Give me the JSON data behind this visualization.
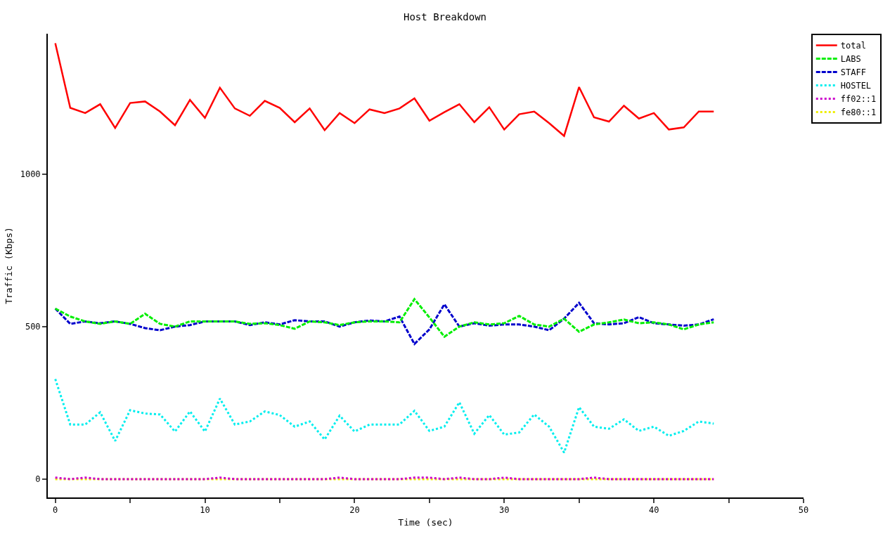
{
  "chart_data": {
    "type": "line",
    "title": "Host Breakdown",
    "xlabel": "Time (sec)",
    "ylabel": "Traffic (Kbps)",
    "x": [
      0,
      1,
      2,
      3,
      4,
      5,
      6,
      7,
      8,
      9,
      10,
      11,
      12,
      13,
      14,
      15,
      16,
      17,
      18,
      19,
      20,
      21,
      22,
      23,
      24,
      25,
      26,
      27,
      28,
      29,
      30,
      31,
      32,
      33,
      34,
      35,
      36,
      37,
      38,
      39,
      40,
      41,
      42,
      43,
      44
    ],
    "series": [
      {
        "name": "total",
        "color": "#ff0000",
        "line_style": "solid",
        "values": [
          1429,
          1217,
          1200,
          1229,
          1151,
          1233,
          1238,
          1205,
          1160,
          1243,
          1184,
          1283,
          1215,
          1191,
          1240,
          1217,
          1170,
          1215,
          1144,
          1200,
          1167,
          1212,
          1200,
          1215,
          1248,
          1175,
          1203,
          1229,
          1170,
          1219,
          1146,
          1196,
          1205,
          1167,
          1125,
          1285,
          1186,
          1172,
          1224,
          1182,
          1200,
          1146,
          1153,
          1205,
          1205
        ]
      },
      {
        "name": "LABS",
        "color": "#00ee00",
        "line_style": "dashed",
        "values": [
          559,
          533,
          517,
          509,
          517,
          509,
          542,
          509,
          500,
          517,
          517,
          517,
          517,
          509,
          511,
          505,
          493,
          517,
          514,
          505,
          514,
          517,
          517,
          514,
          590,
          530,
          467,
          500,
          514,
          507,
          511,
          535,
          507,
          500,
          526,
          483,
          507,
          514,
          523,
          511,
          514,
          507,
          491,
          507,
          514
        ]
      },
      {
        "name": "STAFF",
        "color": "#0000cc",
        "line_style": "dashed",
        "values": [
          559,
          509,
          517,
          511,
          517,
          509,
          495,
          488,
          500,
          505,
          517,
          517,
          517,
          505,
          514,
          507,
          521,
          517,
          517,
          500,
          514,
          520,
          517,
          533,
          443,
          491,
          573,
          500,
          511,
          503,
          507,
          507,
          500,
          488,
          526,
          578,
          511,
          507,
          511,
          531,
          511,
          507,
          503,
          507,
          524
        ]
      },
      {
        "name": "HOSTEL",
        "color": "#00eeee",
        "line_style": "dotted",
        "values": [
          328,
          179,
          179,
          219,
          125,
          226,
          215,
          212,
          156,
          222,
          156,
          264,
          179,
          189,
          222,
          210,
          172,
          189,
          130,
          208,
          156,
          179,
          179,
          179,
          224,
          158,
          172,
          252,
          149,
          210,
          146,
          153,
          212,
          172,
          87,
          236,
          172,
          165,
          196,
          158,
          172,
          142,
          158,
          189,
          182
        ]
      },
      {
        "name": "ff02::1",
        "color": "#cc00cc",
        "line_style": "dotted",
        "values": [
          5,
          0,
          5,
          0,
          0,
          0,
          0,
          0,
          0,
          0,
          0,
          5,
          0,
          0,
          0,
          0,
          0,
          0,
          0,
          5,
          0,
          0,
          0,
          0,
          5,
          5,
          0,
          5,
          0,
          0,
          5,
          0,
          0,
          0,
          0,
          0,
          5,
          0,
          0,
          0,
          0,
          0,
          0,
          0,
          0
        ]
      },
      {
        "name": "fe80::1",
        "color": "#eeee00",
        "line_style": "dotted",
        "values": [
          0,
          0,
          0,
          0,
          0,
          0,
          0,
          0,
          0,
          0,
          0,
          0,
          0,
          0,
          0,
          0,
          0,
          0,
          0,
          0,
          0,
          0,
          0,
          0,
          0,
          0,
          0,
          0,
          0,
          0,
          0,
          0,
          0,
          0,
          0,
          0,
          0,
          0,
          0,
          0,
          0,
          0,
          0,
          0,
          0
        ]
      }
    ],
    "marker": "none",
    "legend": "top right",
    "grid": false,
    "xlim": [
      -0.5,
      50
    ],
    "xticks": [
      0,
      {
        "value": 5,
        "label": null
      },
      10,
      {
        "value": 15,
        "label": null
      },
      20,
      {
        "value": 25,
        "label": null
      },
      30,
      {
        "value": 35,
        "label": null
      },
      40,
      {
        "value": 45,
        "label": null
      },
      50
    ],
    "ylim": [
      -60,
      1460
    ],
    "yticks": [
      0,
      500,
      1000
    ]
  }
}
